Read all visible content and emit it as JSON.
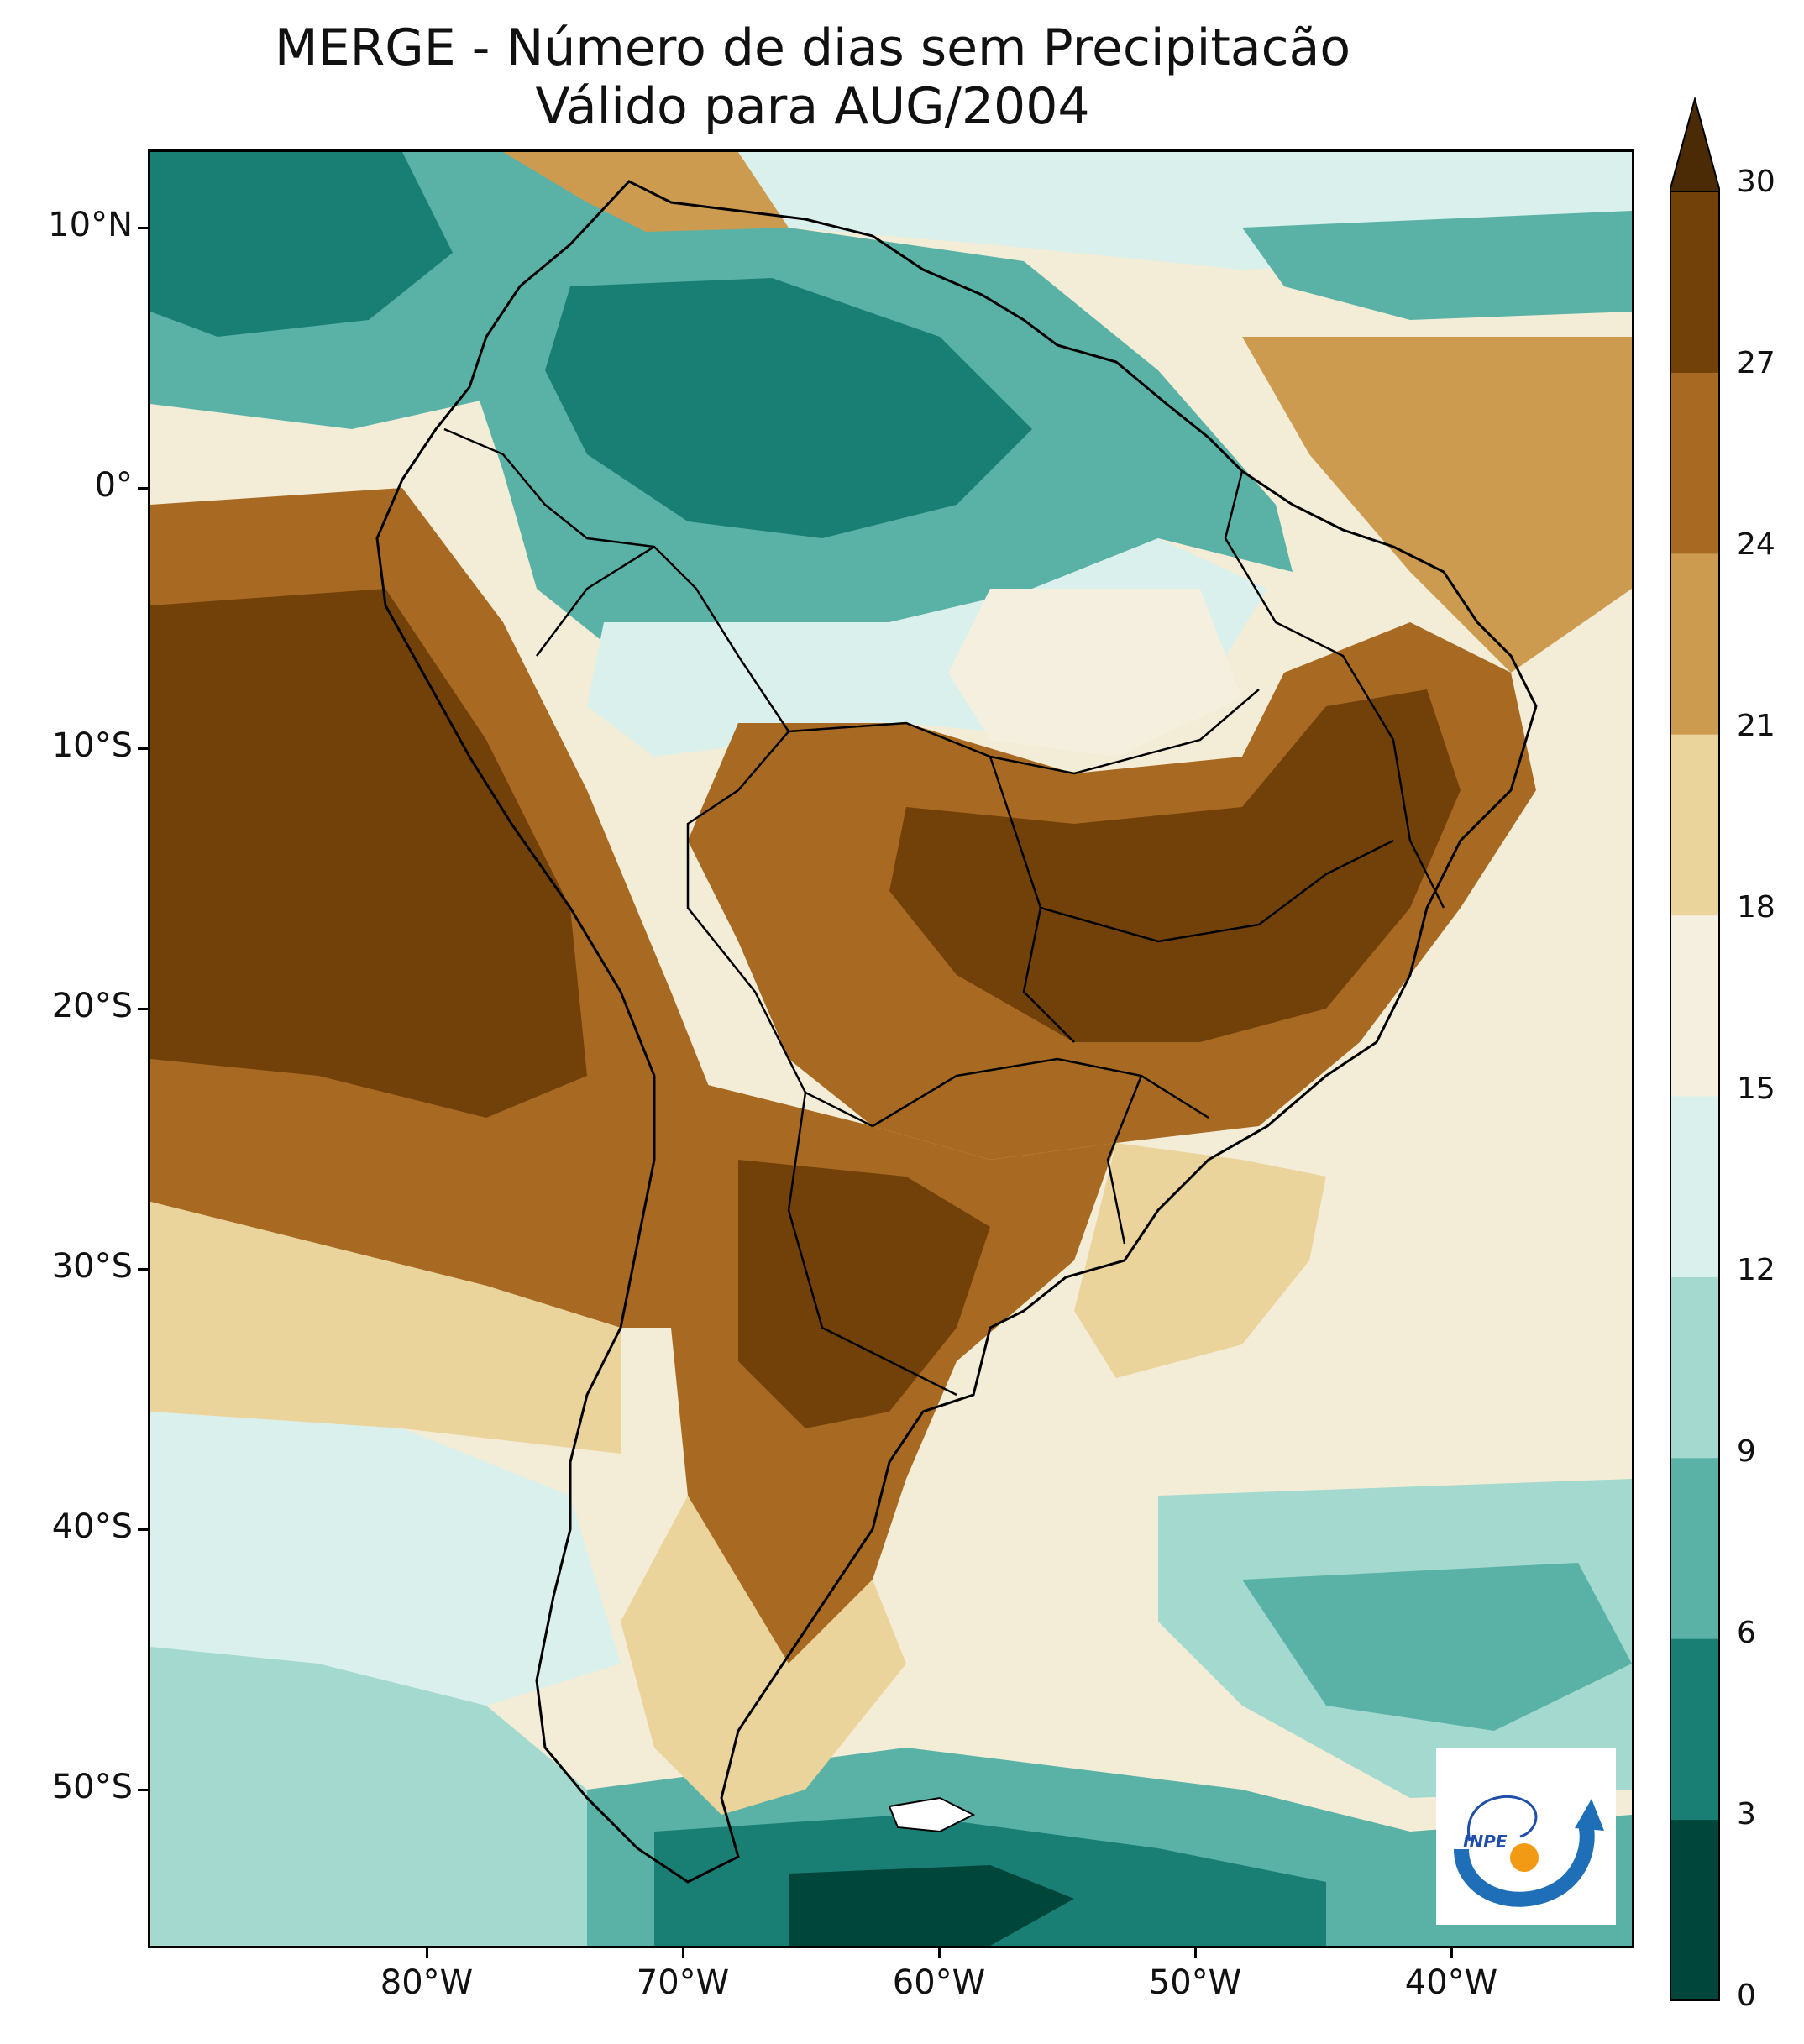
{
  "title": {
    "line1": "MERGE - Número de dias sem Precipitacão",
    "line2": "Válido para AUG/2004"
  },
  "axes": {
    "y_labels": [
      "10°N",
      "0°",
      "10°S",
      "20°S",
      "30°S",
      "40°S",
      "50°S"
    ],
    "x_labels": [
      "80°W",
      "70°W",
      "60°W",
      "50°W",
      "40°W"
    ]
  },
  "colorbar": {
    "ticks": [
      "0",
      "3",
      "6",
      "9",
      "12",
      "15",
      "18",
      "21",
      "24",
      "27",
      "30"
    ],
    "colors": [
      "#01463b",
      "#197f75",
      "#5ab2a7",
      "#a3d9cf",
      "#d9f0ed",
      "#f5efdf",
      "#ebd49c",
      "#cc9b50",
      "#a86a22",
      "#724109"
    ],
    "extend_color": "#4a2b05"
  },
  "logo": {
    "text": "INPE"
  },
  "map": {
    "variable": "number of days without precipitation",
    "period": "AUG/2004",
    "lon_range": [
      -90,
      -32
    ],
    "lat_range": [
      -56,
      13
    ]
  }
}
